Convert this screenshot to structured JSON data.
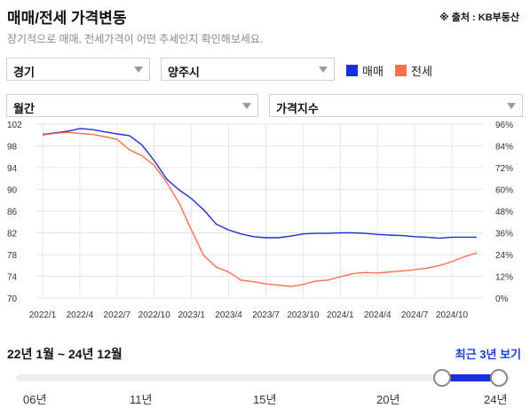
{
  "header": {
    "title": "매매/전세 가격변동",
    "source": "※ 출처 : KB부동산",
    "subtitle": "장기적으로 매매, 전세가격이 어떤 추세인지 확인해보세요."
  },
  "filters": {
    "region": "경기",
    "city": "양주시",
    "period": "월간",
    "metric": "가격지수"
  },
  "legend": [
    {
      "name": "매매",
      "color": "#1a2fd8"
    },
    {
      "name": "전세",
      "color": "#ff6f4d"
    }
  ],
  "chart_data": {
    "type": "line",
    "x": [
      "2022/1",
      "2022/2",
      "2022/3",
      "2022/4",
      "2022/5",
      "2022/6",
      "2022/7",
      "2022/8",
      "2022/9",
      "2022/10",
      "2022/11",
      "2022/12",
      "2023/1",
      "2023/2",
      "2023/3",
      "2023/4",
      "2023/5",
      "2023/6",
      "2023/7",
      "2023/8",
      "2023/9",
      "2023/10",
      "2023/11",
      "2023/12",
      "2024/1",
      "2024/2",
      "2024/3",
      "2024/4",
      "2024/5",
      "2024/6",
      "2024/7",
      "2024/8",
      "2024/9",
      "2024/10",
      "2024/11",
      "2024/12"
    ],
    "x_ticks": [
      "2022/1",
      "2022/4",
      "2022/7",
      "2022/10",
      "2023/1",
      "2023/4",
      "2023/7",
      "2023/10",
      "2024/1",
      "2024/4",
      "2024/7",
      "2024/10"
    ],
    "y_left": {
      "min": 70,
      "max": 102,
      "ticks": [
        102,
        98,
        94,
        90,
        86,
        82,
        78,
        74,
        70
      ]
    },
    "y_right": {
      "ticks": [
        "96%",
        "84%",
        "72%",
        "60%",
        "48%",
        "36%",
        "24%",
        "12%",
        "0%"
      ]
    },
    "series": [
      {
        "name": "매매",
        "color": "#1a2fd8",
        "values": [
          100.1,
          100.4,
          100.7,
          101.2,
          101.0,
          100.6,
          100.2,
          99.9,
          98.2,
          95.3,
          91.9,
          89.9,
          88.3,
          86.2,
          83.6,
          82.5,
          81.8,
          81.3,
          81.1,
          81.1,
          81.4,
          81.8,
          81.9,
          81.9,
          82.0,
          82.0,
          81.9,
          81.7,
          81.6,
          81.5,
          81.3,
          81.2,
          81.0,
          81.2,
          81.2,
          81.2
        ]
      },
      {
        "name": "전세",
        "color": "#ff6f4d",
        "values": [
          100.0,
          100.3,
          100.5,
          100.3,
          100.1,
          99.7,
          99.2,
          97.3,
          96.2,
          94.4,
          91.3,
          87.5,
          82.5,
          77.8,
          75.7,
          74.8,
          73.3,
          73.0,
          72.6,
          72.4,
          72.1,
          72.5,
          73.1,
          73.3,
          73.9,
          74.5,
          74.7,
          74.6,
          74.8,
          75.0,
          75.2,
          75.5,
          76.0,
          76.7,
          77.6,
          78.3
        ]
      }
    ],
    "grid": true
  },
  "range": {
    "label": "22년 1월 ~ 24년 12월",
    "recent": "최근 3년 보기",
    "ticks": [
      "06년",
      "11년",
      "15년",
      "20년",
      "24년"
    ]
  }
}
